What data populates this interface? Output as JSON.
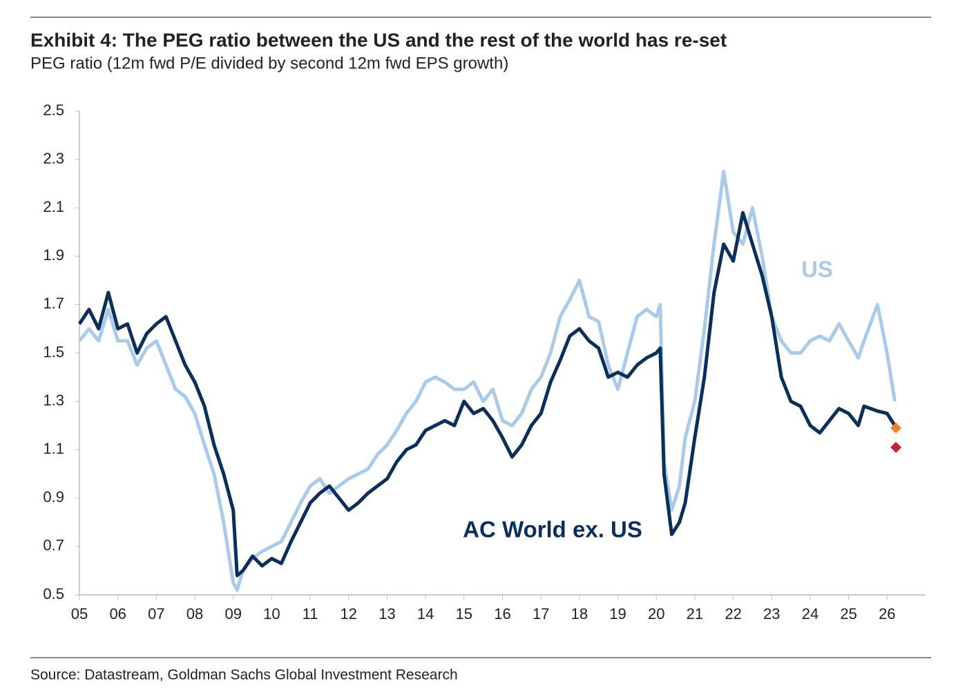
{
  "chart_data": {
    "type": "line",
    "title": "Exhibit 4: The PEG ratio between the US and the rest of the world has re-set",
    "subtitle": "PEG ratio (12m fwd P/E divided by second 12m fwd EPS growth)",
    "source": "Source: Datastream, Goldman Sachs Global Investment Research",
    "x": [
      2005.0,
      2005.25,
      2005.5,
      2005.75,
      2006.0,
      2006.25,
      2006.5,
      2006.75,
      2007.0,
      2007.25,
      2007.5,
      2007.75,
      2008.0,
      2008.25,
      2008.5,
      2008.75,
      2009.0,
      2009.1,
      2009.25,
      2009.5,
      2009.75,
      2010.0,
      2010.25,
      2010.5,
      2010.75,
      2011.0,
      2011.25,
      2011.5,
      2011.75,
      2012.0,
      2012.25,
      2012.5,
      2012.75,
      2013.0,
      2013.25,
      2013.5,
      2013.75,
      2014.0,
      2014.25,
      2014.5,
      2014.75,
      2015.0,
      2015.25,
      2015.5,
      2015.75,
      2016.0,
      2016.25,
      2016.5,
      2016.75,
      2017.0,
      2017.25,
      2017.5,
      2017.75,
      2018.0,
      2018.25,
      2018.5,
      2018.75,
      2019.0,
      2019.25,
      2019.5,
      2019.75,
      2020.0,
      2020.1,
      2020.2,
      2020.4,
      2020.6,
      2020.75,
      2021.0,
      2021.25,
      2021.5,
      2021.75,
      2022.0,
      2022.25,
      2022.5,
      2022.75,
      2023.0,
      2023.25,
      2023.5,
      2023.75,
      2024.0,
      2024.25,
      2024.5,
      2024.75,
      2025.0,
      2025.25,
      2025.4,
      2025.75,
      2026.0,
      2026.2
    ],
    "series": [
      {
        "name": "US",
        "color": "#a9cbe9",
        "values": [
          1.55,
          1.6,
          1.55,
          1.68,
          1.55,
          1.55,
          1.45,
          1.52,
          1.55,
          1.45,
          1.35,
          1.32,
          1.25,
          1.12,
          1.0,
          0.8,
          0.55,
          0.52,
          0.6,
          0.65,
          0.68,
          0.7,
          0.72,
          0.8,
          0.88,
          0.95,
          0.98,
          0.92,
          0.95,
          0.98,
          1.0,
          1.02,
          1.08,
          1.12,
          1.18,
          1.25,
          1.3,
          1.38,
          1.4,
          1.38,
          1.35,
          1.35,
          1.38,
          1.3,
          1.35,
          1.22,
          1.2,
          1.25,
          1.35,
          1.4,
          1.5,
          1.65,
          1.72,
          1.8,
          1.65,
          1.63,
          1.45,
          1.35,
          1.5,
          1.65,
          1.68,
          1.65,
          1.7,
          1.05,
          0.85,
          0.95,
          1.15,
          1.3,
          1.6,
          1.95,
          2.25,
          2.0,
          1.95,
          2.1,
          1.9,
          1.65,
          1.55,
          1.5,
          1.5,
          1.55,
          1.57,
          1.55,
          1.62,
          1.55,
          1.48,
          1.55,
          1.7,
          1.5,
          1.3
        ]
      },
      {
        "name": "AC World ex. US",
        "color": "#0b2f5b",
        "values": [
          1.62,
          1.68,
          1.6,
          1.75,
          1.6,
          1.62,
          1.5,
          1.58,
          1.62,
          1.65,
          1.55,
          1.45,
          1.38,
          1.28,
          1.12,
          1.0,
          0.85,
          0.58,
          0.6,
          0.66,
          0.62,
          0.65,
          0.63,
          0.72,
          0.8,
          0.88,
          0.92,
          0.95,
          0.9,
          0.85,
          0.88,
          0.92,
          0.95,
          0.98,
          1.05,
          1.1,
          1.12,
          1.18,
          1.2,
          1.22,
          1.2,
          1.3,
          1.25,
          1.27,
          1.22,
          1.15,
          1.07,
          1.12,
          1.2,
          1.25,
          1.38,
          1.47,
          1.57,
          1.6,
          1.55,
          1.52,
          1.4,
          1.42,
          1.4,
          1.45,
          1.48,
          1.5,
          1.52,
          1.0,
          0.75,
          0.8,
          0.88,
          1.15,
          1.4,
          1.75,
          1.95,
          1.88,
          2.08,
          1.95,
          1.82,
          1.65,
          1.4,
          1.3,
          1.28,
          1.2,
          1.17,
          1.22,
          1.27,
          1.25,
          1.2,
          1.28,
          1.26,
          1.25,
          1.2
        ]
      }
    ],
    "end_markers": [
      {
        "x": 2026.23,
        "value": 1.19,
        "color": "#e8852a"
      },
      {
        "x": 2026.23,
        "value": 1.11,
        "color": "#c8202f"
      }
    ],
    "xlim": [
      2005,
      2027
    ],
    "xticks": [
      {
        "value": 2005,
        "label": "05"
      },
      {
        "value": 2006,
        "label": "06"
      },
      {
        "value": 2007,
        "label": "07"
      },
      {
        "value": 2008,
        "label": "08"
      },
      {
        "value": 2009,
        "label": "09"
      },
      {
        "value": 2010,
        "label": "10"
      },
      {
        "value": 2011,
        "label": "11"
      },
      {
        "value": 2012,
        "label": "12"
      },
      {
        "value": 2013,
        "label": "13"
      },
      {
        "value": 2014,
        "label": "14"
      },
      {
        "value": 2015,
        "label": "15"
      },
      {
        "value": 2016,
        "label": "16"
      },
      {
        "value": 2017,
        "label": "17"
      },
      {
        "value": 2018,
        "label": "18"
      },
      {
        "value": 2019,
        "label": "19"
      },
      {
        "value": 2020,
        "label": "20"
      },
      {
        "value": 2021,
        "label": "21"
      },
      {
        "value": 2022,
        "label": "22"
      },
      {
        "value": 2023,
        "label": "23"
      },
      {
        "value": 2024,
        "label": "24"
      },
      {
        "value": 2025,
        "label": "25"
      },
      {
        "value": 2026,
        "label": "26"
      }
    ],
    "ylim": [
      0.5,
      2.5
    ],
    "yticks": [
      0.5,
      0.7,
      0.9,
      1.1,
      1.3,
      1.5,
      1.7,
      1.9,
      2.1,
      2.3,
      2.5
    ],
    "grid": false
  }
}
